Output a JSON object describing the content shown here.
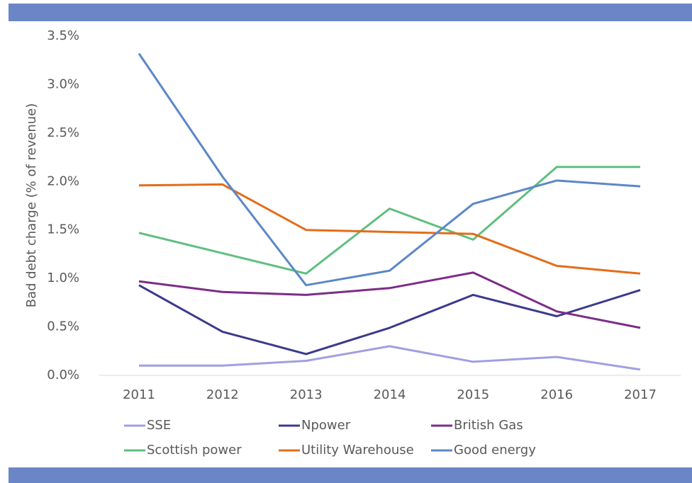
{
  "chart_data": {
    "type": "line",
    "y_label": "Bad debt charge (% of revenue)",
    "categories": [
      "2011",
      "2012",
      "2013",
      "2014",
      "2015",
      "2016",
      "2017"
    ],
    "series": [
      {
        "name": "SSE",
        "color": "#a09fe2",
        "values": [
          0.1,
          0.1,
          0.15,
          0.3,
          0.14,
          0.19,
          0.06
        ]
      },
      {
        "name": "Npower",
        "color": "#3b3a8c",
        "values": [
          0.93,
          0.45,
          0.22,
          0.49,
          0.83,
          0.61,
          0.88
        ]
      },
      {
        "name": "British Gas",
        "color": "#7b2d86",
        "values": [
          0.97,
          0.86,
          0.83,
          0.9,
          1.06,
          0.66,
          0.49
        ]
      },
      {
        "name": "Scottish power",
        "color": "#5fbf7f",
        "values": [
          1.47,
          1.26,
          1.05,
          1.72,
          1.4,
          2.15,
          2.15
        ]
      },
      {
        "name": "Utility Warehouse",
        "color": "#e46c1a",
        "values": [
          1.96,
          1.97,
          1.5,
          1.48,
          1.46,
          1.13,
          1.05
        ]
      },
      {
        "name": "Good energy",
        "color": "#5b87c7",
        "values": [
          3.32,
          2.05,
          0.93,
          1.08,
          1.77,
          2.01,
          1.95
        ]
      }
    ],
    "ylim": [
      0,
      3.5
    ],
    "yticks": [
      {
        "value": 0,
        "label": "0.0%"
      },
      {
        "value": 0.5,
        "label": "0.5%"
      },
      {
        "value": 1,
        "label": "1.0%"
      },
      {
        "value": 1.5,
        "label": "1.5%"
      },
      {
        "value": 2,
        "label": "2.0%"
      },
      {
        "value": 2.5,
        "label": "2.5%"
      },
      {
        "value": 3,
        "label": "3.0%"
      },
      {
        "value": 3.5,
        "label": "3.5%"
      }
    ],
    "grid": false,
    "legend": "bottom"
  }
}
